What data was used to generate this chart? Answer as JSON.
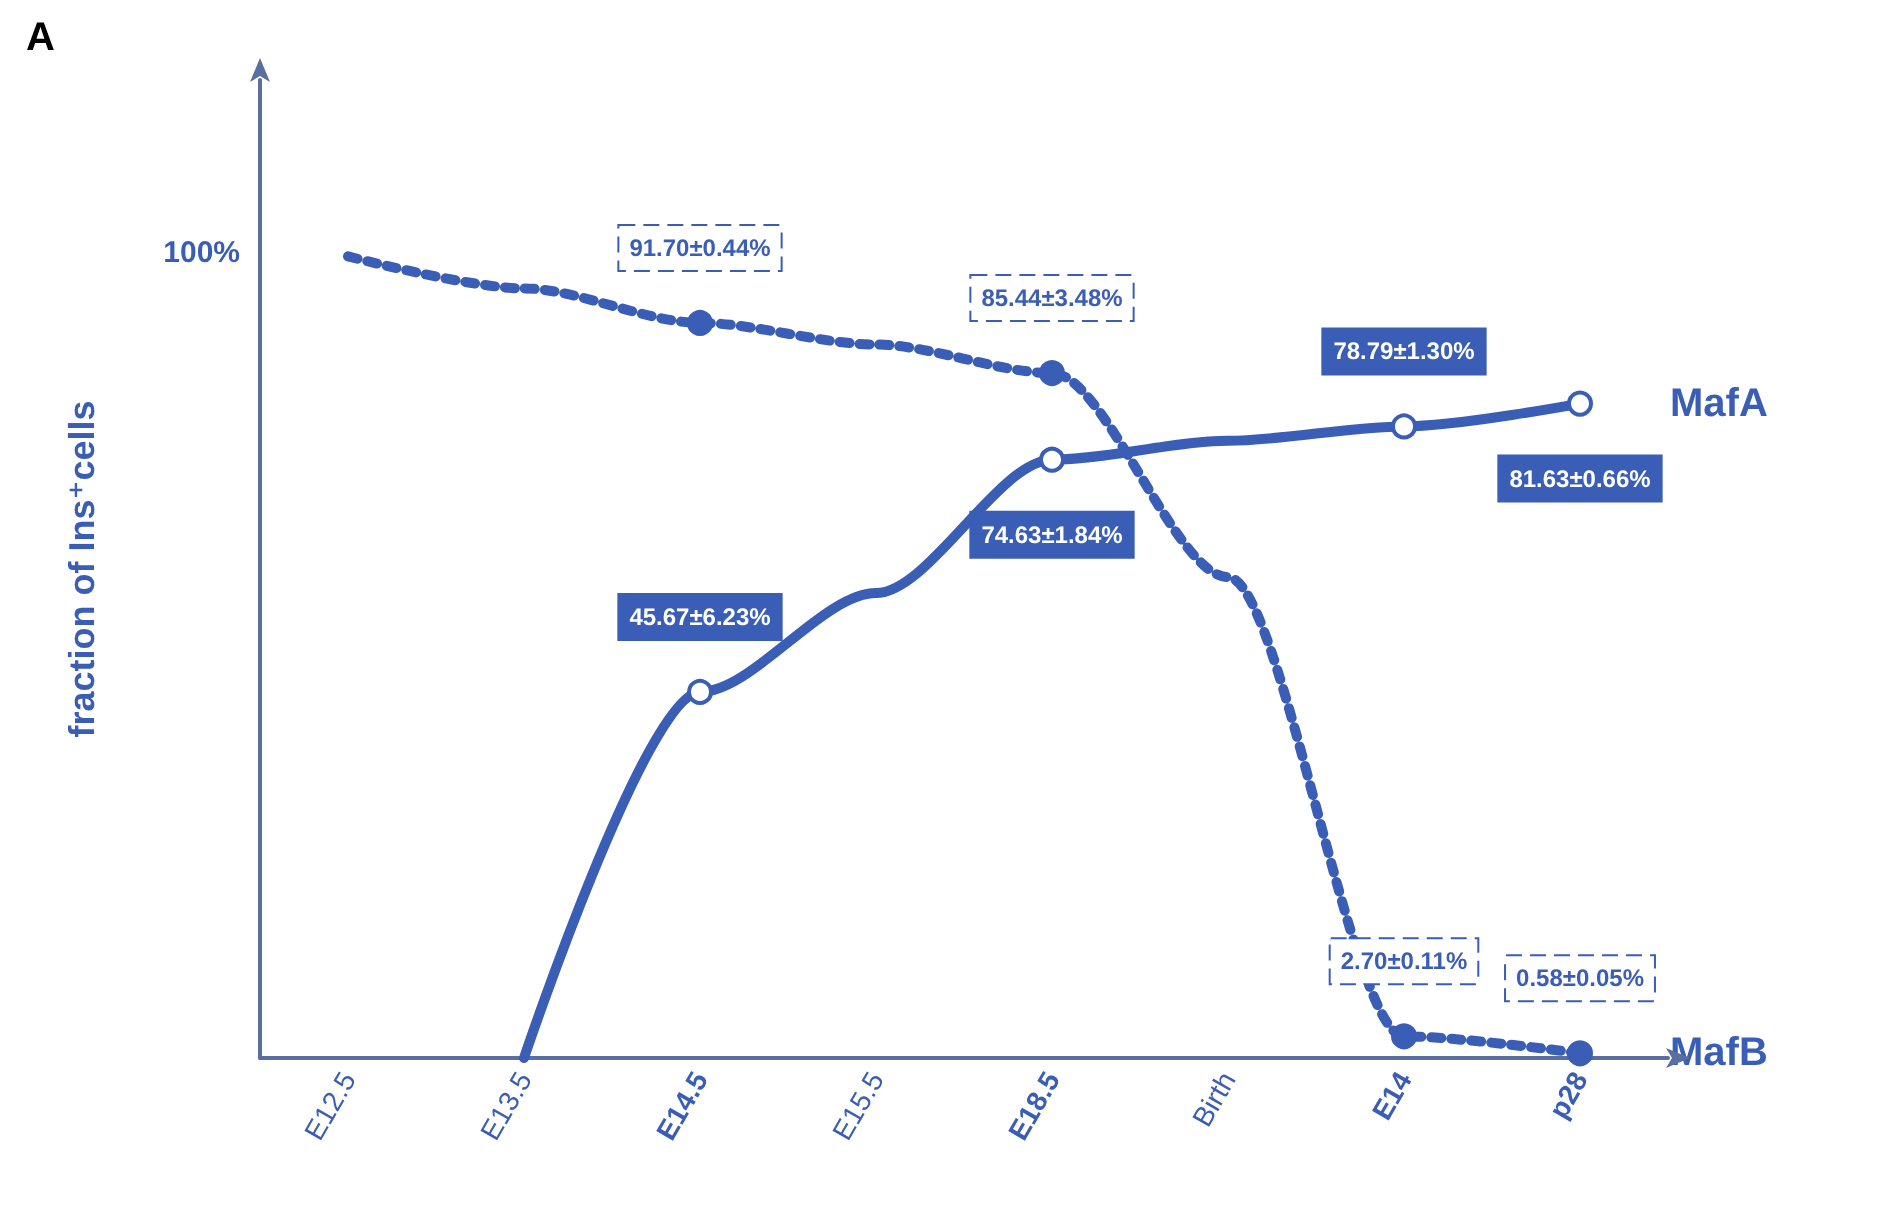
{
  "chart_data": {
    "type": "line",
    "title": "A",
    "ylabel": "fraction of Ins⁺cells",
    "annotations": [
      "100%"
    ],
    "categories": [
      "E12.5",
      "E13.5",
      "E14.5",
      "E15.5",
      "E18.5",
      "Birth",
      "E14",
      "p28"
    ],
    "grid": false,
    "legend": false,
    "marker": "circle",
    "series": [
      {
        "name": "MafA",
        "color": "#3a5db5",
        "line_style": "solid",
        "values": [
          null,
          0,
          45.67,
          58,
          74.63,
          77,
          78.79,
          81.63
        ],
        "value_labels": [
          null,
          null,
          "45.67±6.23%",
          null,
          "74.63±1.84%",
          null,
          "78.79±1.30%",
          "81.63±0.66%"
        ]
      },
      {
        "name": "MafB",
        "color": "#3a5db5",
        "line_style": "dotted",
        "values": [
          100,
          96,
          91.7,
          89,
          85.44,
          60,
          2.7,
          0.58
        ],
        "value_labels": [
          null,
          null,
          "91.70±0.44%",
          null,
          "85.44±3.48%",
          null,
          "2.70±0.11%",
          "0.58±0.05%"
        ]
      }
    ]
  }
}
